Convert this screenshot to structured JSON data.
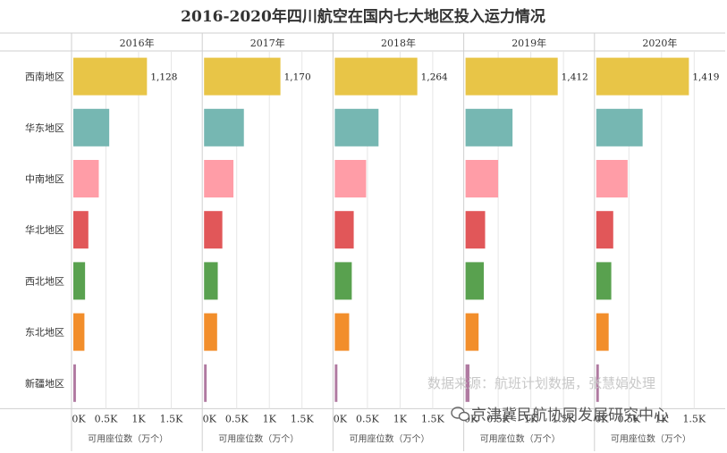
{
  "chart_data": {
    "type": "bar",
    "orientation": "horizontal",
    "title": "2016-2020年四川航空在国内七大地区投入运力情况",
    "categories": [
      "西南地区",
      "华东地区",
      "中南地区",
      "华北地区",
      "西北地区",
      "东北地区",
      "新疆地区"
    ],
    "category_colors": [
      "#e8c547",
      "#76b7b2",
      "#ff9da7",
      "#e15759",
      "#59a14f",
      "#f28e2b",
      "#b07aa1"
    ],
    "panels": [
      {
        "name": "2016年",
        "values": [
          1128,
          550,
          390,
          230,
          180,
          170,
          40
        ],
        "value_label": "1,128"
      },
      {
        "name": "2017年",
        "values": [
          1170,
          610,
          450,
          280,
          210,
          200,
          40
        ],
        "value_label": "1,170"
      },
      {
        "name": "2018年",
        "values": [
          1264,
          670,
          480,
          290,
          260,
          220,
          40
        ],
        "value_label": "1,264"
      },
      {
        "name": "2019年",
        "values": [
          1412,
          720,
          500,
          300,
          280,
          200,
          60
        ],
        "value_label": "1,412"
      },
      {
        "name": "2020年",
        "values": [
          1419,
          710,
          480,
          260,
          230,
          190,
          40
        ],
        "value_label": "1,419"
      }
    ],
    "x_ticks": [
      "0K",
      "0.5K",
      "1K",
      "1.5K"
    ],
    "x_tick_values": [
      0,
      500,
      1000,
      1500
    ],
    "xlim": [
      0,
      2000
    ],
    "xlabel": "可用座位数（万个）",
    "grid": true
  },
  "watermark": {
    "source": "数据来源：航班计划数据，张慧娟处理",
    "brand": "京津冀民航协同发展研究中心"
  }
}
